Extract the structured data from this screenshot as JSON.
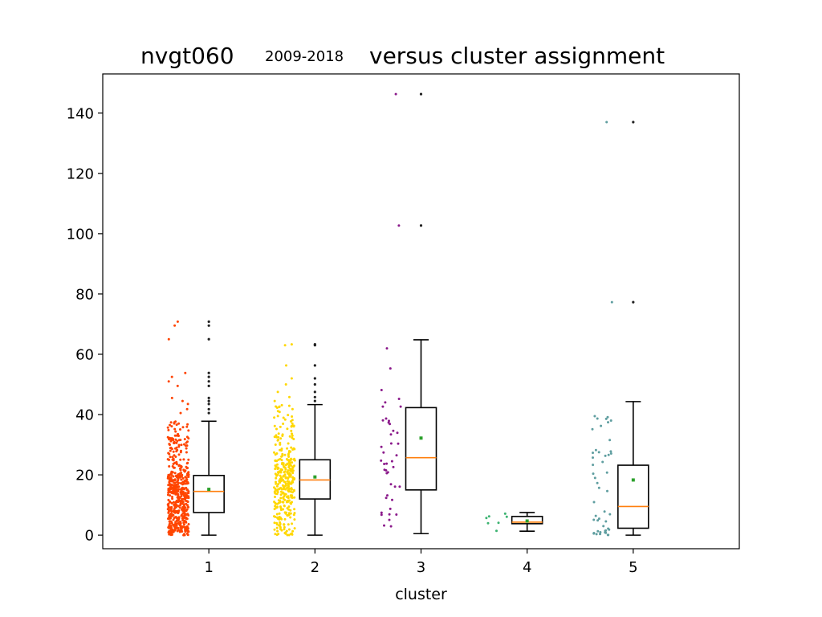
{
  "chart_data": {
    "type": "box",
    "title": {
      "main": "nvgt060",
      "sub": "2009-2018",
      "rest": "versus cluster assignment"
    },
    "xlabel": "cluster",
    "ylabel": "",
    "ylim": [
      -4.5,
      153
    ],
    "xlim": [
      0,
      6
    ],
    "yticks": [
      0,
      20,
      40,
      60,
      80,
      100,
      120,
      140
    ],
    "grid": false,
    "clusters": [
      {
        "label": "1",
        "color": "#ff4500",
        "box": {
          "whisker_low": 0,
          "q1": 7.5,
          "median": 14.5,
          "q3": 19.8,
          "whisker_high": 37.8,
          "mean": 15.2
        },
        "outliers": [
          40.5,
          41.8,
          43.5,
          44.5,
          45.5,
          49.5,
          51.0,
          52.5,
          53.8,
          65.0,
          69.5,
          70.8
        ],
        "scatter": {
          "count": 550,
          "max": 70.8
        }
      },
      {
        "label": "2",
        "color": "#ffd700",
        "box": {
          "whisker_low": 0,
          "q1": 12.0,
          "median": 18.3,
          "q3": 25.0,
          "whisker_high": 43.3,
          "mean": 19.3
        },
        "outliers": [
          44.5,
          45.8,
          47.5,
          50.0,
          52.0,
          56.3,
          63.0,
          63.3
        ],
        "scatter": {
          "count": 350,
          "max": 63.3
        }
      },
      {
        "label": "3",
        "color": "#8b1a8b",
        "box": {
          "whisker_low": 0.5,
          "q1": 15.0,
          "median": 25.7,
          "q3": 42.3,
          "whisker_high": 64.8,
          "mean": 32.2
        },
        "outliers": [
          102.7,
          146.3
        ],
        "scatter": {
          "count": 45,
          "max": 146.3
        }
      },
      {
        "label": "4",
        "color": "#3cb371",
        "box": {
          "whisker_low": 1.3,
          "q1": 3.8,
          "median": 4.3,
          "q3": 6.2,
          "whisker_high": 7.5,
          "mean": 4.7
        },
        "outliers": [],
        "scatter": {
          "count": 7,
          "max": 7.5
        }
      },
      {
        "label": "5",
        "color": "#5f9ea0",
        "box": {
          "whisker_low": 0,
          "q1": 2.3,
          "median": 9.5,
          "q3": 23.2,
          "whisker_high": 44.3,
          "mean": 18.3
        },
        "outliers": [
          77.3,
          137.0
        ],
        "scatter": {
          "count": 50,
          "max": 137.0
        }
      }
    ]
  }
}
